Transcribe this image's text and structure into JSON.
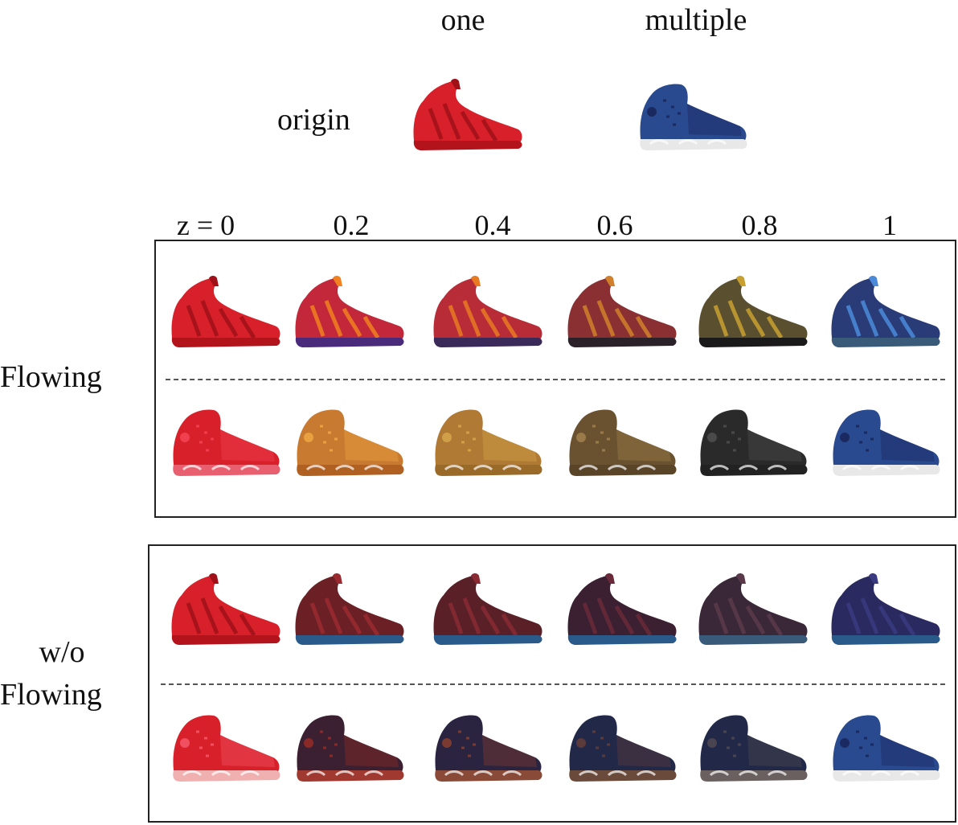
{
  "header": {
    "col_one": "one",
    "col_multiple": "multiple",
    "row_origin": "origin"
  },
  "z_axis": {
    "labels": [
      "z = 0",
      "0.2",
      "0.4",
      "0.6",
      "0.8",
      "1"
    ]
  },
  "groups": [
    {
      "label_lines": [
        "Flowing"
      ],
      "rows": [
        {
          "shape": "foamposite",
          "colors": [
            {
              "upper": "#d8202a",
              "accent": "#a01018",
              "sole": "#b3141c"
            },
            {
              "upper": "#c2283a",
              "accent": "#f08020",
              "sole": "#4a2a7a"
            },
            {
              "upper": "#b82c38",
              "accent": "#e87a22",
              "sole": "#3a2a5a"
            },
            {
              "upper": "#8a3032",
              "accent": "#d0802c",
              "sole": "#2a2228"
            },
            {
              "upper": "#5a5030",
              "accent": "#c8a030",
              "sole": "#1a1a1a"
            },
            {
              "upper": "#2a3c78",
              "accent": "#4a8ad8",
              "sole": "#3a5a7a"
            }
          ]
        },
        {
          "shape": "jordan",
          "colors": [
            {
              "upper": "#d8202a",
              "accent": "#f04050",
              "sole": "#e86070"
            },
            {
              "upper": "#c87a30",
              "accent": "#e8a040",
              "sole": "#b06020"
            },
            {
              "upper": "#b07a34",
              "accent": "#d0a048",
              "sole": "#9a6a28"
            },
            {
              "upper": "#6a5230",
              "accent": "#9a7a48",
              "sole": "#5a4428"
            },
            {
              "upper": "#2a2a2a",
              "accent": "#4a4a4a",
              "sole": "#222222"
            },
            {
              "upper": "#2a4a90",
              "accent": "#1a2a60",
              "sole": "#e8e8e8"
            }
          ]
        }
      ]
    },
    {
      "label_lines": [
        "w/o",
        "Flowing"
      ],
      "rows": [
        {
          "shape": "foamposite",
          "colors": [
            {
              "upper": "#d8202a",
              "accent": "#a01018",
              "sole": "#b3141c"
            },
            {
              "upper": "#6a2024",
              "accent": "#9a2a30",
              "sole": "#2a5a8a"
            },
            {
              "upper": "#5a2028",
              "accent": "#8a2a32",
              "sole": "#2a5a8a"
            },
            {
              "upper": "#3a2030",
              "accent": "#6a2a3a",
              "sole": "#2a5a8a"
            },
            {
              "upper": "#3a2838",
              "accent": "#5a3a4a",
              "sole": "#3a5a7a"
            },
            {
              "upper": "#2a2a60",
              "accent": "#3a3a80",
              "sole": "#2a5a8a"
            }
          ]
        },
        {
          "shape": "jordan",
          "colors": [
            {
              "upper": "#d8202a",
              "accent": "#f05060",
              "sole": "#f0b0b0"
            },
            {
              "upper": "#3a2030",
              "accent": "#8a2a28",
              "sole": "#a03a30"
            },
            {
              "upper": "#2a2440",
              "accent": "#7a3a30",
              "sole": "#8a4a38"
            },
            {
              "upper": "#222848",
              "accent": "#5a3a3a",
              "sole": "#6a4a3a"
            },
            {
              "upper": "#222848",
              "accent": "#4a4450",
              "sole": "#6a6060"
            },
            {
              "upper": "#2a4a90",
              "accent": "#1a2a60",
              "sole": "#e8e8e8"
            }
          ]
        }
      ]
    }
  ],
  "origin_shoes": [
    {
      "shape": "foamposite",
      "upper": "#d8202a",
      "accent": "#a01018",
      "sole": "#b3141c"
    },
    {
      "shape": "jordan",
      "upper": "#2a4a90",
      "accent": "#1a2a60",
      "sole": "#e8e8e8"
    }
  ]
}
